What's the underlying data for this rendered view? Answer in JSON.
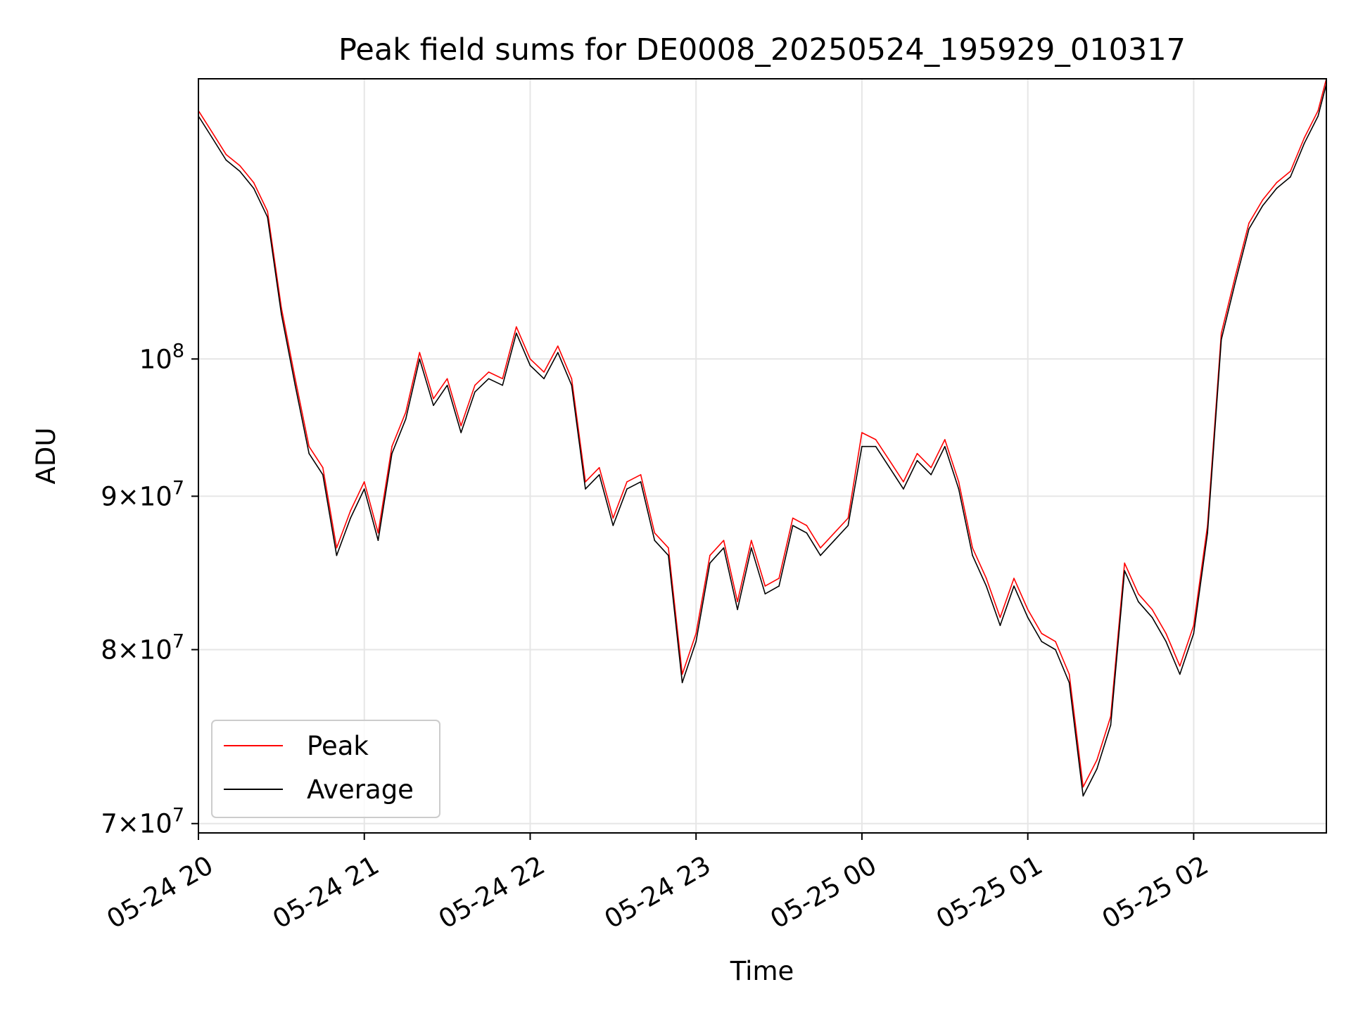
{
  "chart_data": {
    "type": "line",
    "title": "Peak field sums for DE0008_20250524_195929_010317",
    "xlabel": "Time",
    "ylabel": "ADU",
    "xscale": "time",
    "yscale": "log",
    "xlim": [
      "2025-05-24T20:00",
      "2025-05-25T02:48"
    ],
    "ylim": [
      69500000,
      124000000
    ],
    "grid": true,
    "legend_position": "lower-left",
    "xticks": [
      {
        "value": "2025-05-24T20:00",
        "label": "05-24 20"
      },
      {
        "value": "2025-05-24T21:00",
        "label": "05-24 21"
      },
      {
        "value": "2025-05-24T22:00",
        "label": "05-24 22"
      },
      {
        "value": "2025-05-24T23:00",
        "label": "05-24 23"
      },
      {
        "value": "2025-05-25T00:00",
        "label": "05-25 00"
      },
      {
        "value": "2025-05-25T01:00",
        "label": "05-25 01"
      },
      {
        "value": "2025-05-25T02:00",
        "label": "05-25 02"
      }
    ],
    "yticks": [
      {
        "value": 70000000,
        "mantissa": "7",
        "base": "10",
        "exp": "7"
      },
      {
        "value": 80000000,
        "mantissa": "8",
        "base": "10",
        "exp": "7"
      },
      {
        "value": 90000000,
        "mantissa": "9",
        "base": "10",
        "exp": "7"
      },
      {
        "value": 100000000,
        "mantissa": "",
        "base": "10",
        "exp": "8"
      }
    ],
    "series": [
      {
        "name": "Peak",
        "color": "#ff0000",
        "x": [
          "2025-05-24T20:00",
          "2025-05-24T20:05",
          "2025-05-24T20:10",
          "2025-05-24T20:15",
          "2025-05-24T20:20",
          "2025-05-24T20:25",
          "2025-05-24T20:30",
          "2025-05-24T20:35",
          "2025-05-24T20:40",
          "2025-05-24T20:45",
          "2025-05-24T20:50",
          "2025-05-24T20:55",
          "2025-05-24T21:00",
          "2025-05-24T21:05",
          "2025-05-24T21:10",
          "2025-05-24T21:15",
          "2025-05-24T21:20",
          "2025-05-24T21:25",
          "2025-05-24T21:30",
          "2025-05-24T21:35",
          "2025-05-24T21:40",
          "2025-05-24T21:45",
          "2025-05-24T21:50",
          "2025-05-24T21:55",
          "2025-05-24T22:00",
          "2025-05-24T22:05",
          "2025-05-24T22:10",
          "2025-05-24T22:15",
          "2025-05-24T22:20",
          "2025-05-24T22:25",
          "2025-05-24T22:30",
          "2025-05-24T22:35",
          "2025-05-24T22:40",
          "2025-05-24T22:45",
          "2025-05-24T22:50",
          "2025-05-24T22:55",
          "2025-05-24T23:00",
          "2025-05-24T23:05",
          "2025-05-24T23:10",
          "2025-05-24T23:15",
          "2025-05-24T23:20",
          "2025-05-24T23:25",
          "2025-05-24T23:30",
          "2025-05-24T23:35",
          "2025-05-24T23:40",
          "2025-05-24T23:45",
          "2025-05-24T23:50",
          "2025-05-24T23:55",
          "2025-05-25T00:00",
          "2025-05-25T00:05",
          "2025-05-25T00:10",
          "2025-05-25T00:15",
          "2025-05-25T00:20",
          "2025-05-25T00:25",
          "2025-05-25T00:30",
          "2025-05-25T00:35",
          "2025-05-25T00:40",
          "2025-05-25T00:45",
          "2025-05-25T00:50",
          "2025-05-25T00:55",
          "2025-05-25T01:00",
          "2025-05-25T01:05",
          "2025-05-25T01:10",
          "2025-05-25T01:15",
          "2025-05-25T01:20",
          "2025-05-25T01:25",
          "2025-05-25T01:30",
          "2025-05-25T01:35",
          "2025-05-25T01:40",
          "2025-05-25T01:45",
          "2025-05-25T01:50",
          "2025-05-25T01:55",
          "2025-05-25T02:00",
          "2025-05-25T02:05",
          "2025-05-25T02:10",
          "2025-05-25T02:15",
          "2025-05-25T02:20",
          "2025-05-25T02:25",
          "2025-05-25T02:30",
          "2025-05-25T02:35",
          "2025-05-25T02:40",
          "2025-05-25T02:45",
          "2025-05-25T02:48"
        ],
        "values": [
          121000000,
          119000000,
          117000000,
          116000000,
          114500000,
          112000000,
          104000000,
          98500000,
          93500000,
          92000000,
          86500000,
          89000000,
          91000000,
          87500000,
          93500000,
          96000000,
          100500000,
          97000000,
          98500000,
          95000000,
          98000000,
          99000000,
          98500000,
          102500000,
          100000000,
          99000000,
          101000000,
          98500000,
          91000000,
          92000000,
          88500000,
          91000000,
          91500000,
          87500000,
          86500000,
          78500000,
          81000000,
          86000000,
          87000000,
          83000000,
          87000000,
          84000000,
          84500000,
          88500000,
          88000000,
          86500000,
          87500000,
          88500000,
          94500000,
          94000000,
          92500000,
          91000000,
          93000000,
          92000000,
          94000000,
          91000000,
          86500000,
          84500000,
          82000000,
          84500000,
          82500000,
          81000000,
          80500000,
          78500000,
          72000000,
          73500000,
          76000000,
          85500000,
          83500000,
          82500000,
          81000000,
          79000000,
          81500000,
          88000000,
          102000000,
          106500000,
          111000000,
          113000000,
          114500000,
          115500000,
          118500000,
          121000000,
          124000000
        ]
      },
      {
        "name": "Average",
        "color": "#000000",
        "x": [
          "2025-05-24T20:00",
          "2025-05-24T20:05",
          "2025-05-24T20:10",
          "2025-05-24T20:15",
          "2025-05-24T20:20",
          "2025-05-24T20:25",
          "2025-05-24T20:30",
          "2025-05-24T20:35",
          "2025-05-24T20:40",
          "2025-05-24T20:45",
          "2025-05-24T20:50",
          "2025-05-24T20:55",
          "2025-05-24T21:00",
          "2025-05-24T21:05",
          "2025-05-24T21:10",
          "2025-05-24T21:15",
          "2025-05-24T21:20",
          "2025-05-24T21:25",
          "2025-05-24T21:30",
          "2025-05-24T21:35",
          "2025-05-24T21:40",
          "2025-05-24T21:45",
          "2025-05-24T21:50",
          "2025-05-24T21:55",
          "2025-05-24T22:00",
          "2025-05-24T22:05",
          "2025-05-24T22:10",
          "2025-05-24T22:15",
          "2025-05-24T22:20",
          "2025-05-24T22:25",
          "2025-05-24T22:30",
          "2025-05-24T22:35",
          "2025-05-24T22:40",
          "2025-05-24T22:45",
          "2025-05-24T22:50",
          "2025-05-24T22:55",
          "2025-05-24T23:00",
          "2025-05-24T23:05",
          "2025-05-24T23:10",
          "2025-05-24T23:15",
          "2025-05-24T23:20",
          "2025-05-24T23:25",
          "2025-05-24T23:30",
          "2025-05-24T23:35",
          "2025-05-24T23:40",
          "2025-05-24T23:45",
          "2025-05-24T23:50",
          "2025-05-24T23:55",
          "2025-05-25T00:00",
          "2025-05-25T00:05",
          "2025-05-25T00:10",
          "2025-05-25T00:15",
          "2025-05-25T00:20",
          "2025-05-25T00:25",
          "2025-05-25T00:30",
          "2025-05-25T00:35",
          "2025-05-25T00:40",
          "2025-05-25T00:45",
          "2025-05-25T00:50",
          "2025-05-25T00:55",
          "2025-05-25T01:00",
          "2025-05-25T01:05",
          "2025-05-25T01:10",
          "2025-05-25T01:15",
          "2025-05-25T01:20",
          "2025-05-25T01:25",
          "2025-05-25T01:30",
          "2025-05-25T01:35",
          "2025-05-25T01:40",
          "2025-05-25T01:45",
          "2025-05-25T01:50",
          "2025-05-25T01:55",
          "2025-05-25T02:00",
          "2025-05-25T02:05",
          "2025-05-25T02:10",
          "2025-05-25T02:15",
          "2025-05-25T02:20",
          "2025-05-25T02:25",
          "2025-05-25T02:30",
          "2025-05-25T02:35",
          "2025-05-25T02:40",
          "2025-05-25T02:45",
          "2025-05-25T02:48"
        ],
        "values": [
          120500000,
          118500000,
          116500000,
          115500000,
          114000000,
          111500000,
          103500000,
          98000000,
          93000000,
          91500000,
          86000000,
          88500000,
          90500000,
          87000000,
          93000000,
          95500000,
          100000000,
          96500000,
          98000000,
          94500000,
          97500000,
          98500000,
          98000000,
          102000000,
          99500000,
          98500000,
          100500000,
          98000000,
          90500000,
          91500000,
          88000000,
          90500000,
          91000000,
          87000000,
          86000000,
          78000000,
          80500000,
          85500000,
          86500000,
          82500000,
          86500000,
          83500000,
          84000000,
          88000000,
          87500000,
          86000000,
          87000000,
          88000000,
          93500000,
          93500000,
          92000000,
          90500000,
          92500000,
          91500000,
          93500000,
          90500000,
          86000000,
          84000000,
          81500000,
          84000000,
          82000000,
          80500000,
          80000000,
          78000000,
          71500000,
          73000000,
          75500000,
          85000000,
          83000000,
          82000000,
          80500000,
          78500000,
          81000000,
          87500000,
          101500000,
          106000000,
          110500000,
          112500000,
          114000000,
          115000000,
          118000000,
          120500000,
          123500000
        ]
      }
    ]
  }
}
